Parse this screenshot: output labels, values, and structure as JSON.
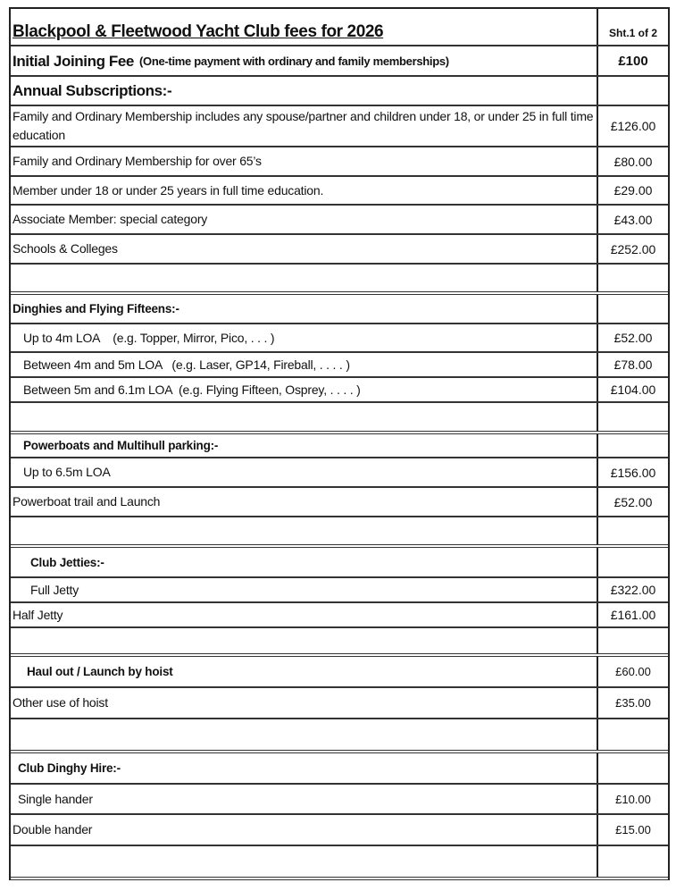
{
  "title": "Blackpool & Fleetwood Yacht Club fees for 2026",
  "sheet": "Sht.1 of 2",
  "joining": {
    "label": "Initial Joining Fee",
    "note": "(One-time payment with ordinary and family memberships)",
    "price": "£100"
  },
  "rows": [
    {
      "type": "big",
      "label": "Annual Subscriptions:-",
      "price": ""
    },
    {
      "type": "item",
      "label": "Family and Ordinary Membership includes any spouse/partner and children under 18, or under 25 in full time education",
      "price": "£126.00"
    },
    {
      "type": "item",
      "label": "Family and Ordinary Membership for over 65’s",
      "price": "£80.00"
    },
    {
      "type": "item",
      "label": "Member under 18 or under 25 years in full time education.",
      "price": "£29.00"
    },
    {
      "type": "item",
      "label": "Associate Member: special category",
      "price": "£43.00"
    },
    {
      "type": "item",
      "label": "Schools & Colleges",
      "price": "£252.00"
    },
    {
      "type": "blank",
      "label": "",
      "price": ""
    },
    {
      "type": "heading",
      "label": "Dinghies and Flying Fifteens:-",
      "price": ""
    },
    {
      "type": "item",
      "label": "Up to 4m LOA    (e.g. Topper, Mirror, Pico, . . . )",
      "price": "£52.00"
    },
    {
      "type": "item",
      "label": "Between 4m and 5m LOA   (e.g. Laser, GP14, Fireball, . . . . )",
      "price": "£78.00"
    },
    {
      "type": "item",
      "label": "Between 5m and 6.1m LOA  (e.g. Flying Fifteen, Osprey, . . . . )",
      "price": "£104.00"
    },
    {
      "type": "blank",
      "label": "",
      "price": ""
    },
    {
      "type": "heading",
      "label": "Powerboats and Multihull parking:-",
      "price": ""
    },
    {
      "type": "item",
      "label": "Up to 6.5m LOA",
      "price": "£156.00"
    },
    {
      "type": "item",
      "label": "Powerboat trail and Launch",
      "price": "£52.00"
    },
    {
      "type": "blank",
      "label": "",
      "price": ""
    },
    {
      "type": "heading",
      "label": "Club Jetties:-",
      "price": ""
    },
    {
      "type": "item",
      "label": "Full Jetty",
      "price": "£322.00"
    },
    {
      "type": "item",
      "label": "Half Jetty",
      "price": "£161.00"
    },
    {
      "type": "blank",
      "label": "",
      "price": ""
    },
    {
      "type": "heading",
      "label": "Haul out / Launch by hoist",
      "price": "£60.00"
    },
    {
      "type": "item",
      "label": "Other use of hoist",
      "price": "£35.00"
    },
    {
      "type": "blank",
      "label": "",
      "price": ""
    },
    {
      "type": "heading",
      "label": "Club Dinghy Hire:-",
      "price": ""
    },
    {
      "type": "item",
      "label": "Single hander",
      "price": "£10.00"
    },
    {
      "type": "item",
      "label": "Double hander",
      "price": "£15.00"
    },
    {
      "type": "blank",
      "label": "",
      "price": ""
    }
  ]
}
